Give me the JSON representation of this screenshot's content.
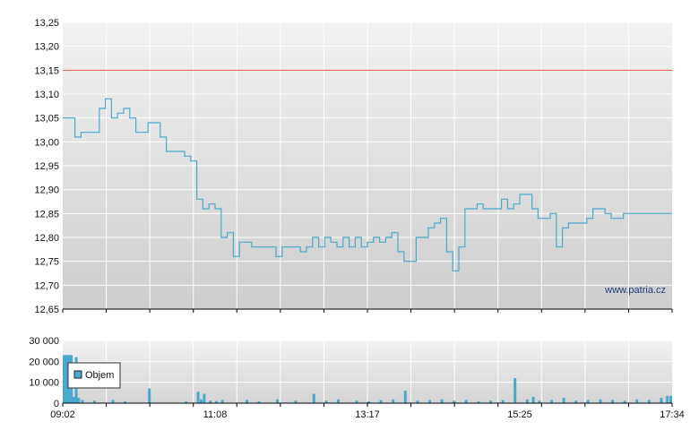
{
  "chart_data": [
    {
      "type": "line",
      "title": "",
      "xlabel": "",
      "ylabel": "",
      "ylim": [
        12.65,
        13.25
      ],
      "yticks": [
        "13,25",
        "13,20",
        "13,15",
        "13,10",
        "13,05",
        "13,00",
        "12,95",
        "12,90",
        "12,85",
        "12,80",
        "12,75",
        "12,70",
        "12,65"
      ],
      "reference_line": {
        "value": 13.15,
        "color": "#e05a4a"
      },
      "line_color": "#4aa8cc",
      "grid": true,
      "watermark": "www.patria.cz",
      "series": [
        {
          "x": [
            0,
            0.02,
            0.03,
            0.06,
            0.07,
            0.08,
            0.09,
            0.1,
            0.11,
            0.12,
            0.14,
            0.16,
            0.17,
            0.19,
            0.2,
            0.21,
            0.22,
            0.23,
            0.24,
            0.25,
            0.26,
            0.27,
            0.28,
            0.29,
            0.3,
            0.31,
            0.33,
            0.35,
            0.36,
            0.37,
            0.39,
            0.4,
            0.41,
            0.42,
            0.43,
            0.44,
            0.45,
            0.46,
            0.47,
            0.48,
            0.49,
            0.5,
            0.51,
            0.52,
            0.53,
            0.54,
            0.55,
            0.56,
            0.57,
            0.58,
            0.59,
            0.6,
            0.61,
            0.62,
            0.63,
            0.64,
            0.65,
            0.66,
            0.67,
            0.68,
            0.69,
            0.7,
            0.71,
            0.72,
            0.73,
            0.74,
            0.75,
            0.76,
            0.77,
            0.78,
            0.79,
            0.8,
            0.81,
            0.82,
            0.83,
            0.84,
            0.85,
            0.86,
            0.87,
            0.88,
            0.89,
            0.9,
            0.91,
            0.92,
            0.93,
            0.94,
            0.95,
            0.96,
            0.97,
            0.98,
            0.99,
            1.0
          ],
          "y": [
            13.05,
            13.01,
            13.02,
            13.07,
            13.09,
            13.05,
            13.06,
            13.07,
            13.05,
            13.02,
            13.04,
            13.01,
            12.98,
            12.98,
            12.97,
            12.96,
            12.88,
            12.86,
            12.87,
            12.86,
            12.8,
            12.81,
            12.76,
            12.79,
            12.79,
            12.78,
            12.78,
            12.76,
            12.78,
            12.78,
            12.77,
            12.78,
            12.8,
            12.78,
            12.8,
            12.79,
            12.78,
            12.8,
            12.78,
            12.8,
            12.78,
            12.79,
            12.8,
            12.79,
            12.8,
            12.81,
            12.77,
            12.75,
            12.75,
            12.8,
            12.8,
            12.82,
            12.83,
            12.84,
            12.77,
            12.73,
            12.78,
            12.86,
            12.86,
            12.87,
            12.86,
            12.86,
            12.86,
            12.88,
            12.86,
            12.87,
            12.89,
            12.89,
            12.86,
            12.84,
            12.84,
            12.85,
            12.78,
            12.82,
            12.83,
            12.83,
            12.83,
            12.84,
            12.86,
            12.86,
            12.85,
            12.84,
            12.84,
            12.85,
            12.85,
            12.85,
            12.85,
            12.85,
            12.85,
            12.85,
            12.85,
            12.85
          ]
        }
      ]
    },
    {
      "type": "bar",
      "title": "",
      "xlabel": "",
      "ylabel": "",
      "ylim": [
        0,
        30000
      ],
      "yticks": [
        "30 000",
        "20 000",
        "10 000",
        "0"
      ],
      "xticks": [
        "09:02",
        "11:08",
        "13:17",
        "15:25",
        "17:34"
      ],
      "bar_color": "#4aa8cc",
      "grid": true,
      "legend": {
        "label": "Objem",
        "position": "top-left"
      },
      "series": [
        {
          "name": "Objem",
          "x": [
            0.0,
            0.004,
            0.008,
            0.012,
            0.016,
            0.02,
            0.024,
            0.03,
            0.05,
            0.08,
            0.1,
            0.14,
            0.2,
            0.22,
            0.225,
            0.23,
            0.24,
            0.25,
            0.26,
            0.3,
            0.32,
            0.35,
            0.38,
            0.41,
            0.43,
            0.45,
            0.48,
            0.5,
            0.52,
            0.54,
            0.56,
            0.58,
            0.6,
            0.62,
            0.64,
            0.66,
            0.68,
            0.7,
            0.72,
            0.74,
            0.76,
            0.77,
            0.78,
            0.8,
            0.82,
            0.84,
            0.86,
            0.88,
            0.9,
            0.92,
            0.94,
            0.96,
            0.98,
            0.99,
            1.0
          ],
          "y": [
            23000,
            23000,
            23000,
            23000,
            3000,
            22000,
            2500,
            1500,
            1200,
            1500,
            900,
            7000,
            900,
            5500,
            1800,
            4500,
            1200,
            1000,
            1500,
            1500,
            900,
            1800,
            1200,
            4500,
            1200,
            1800,
            1200,
            900,
            1500,
            1800,
            6000,
            1200,
            1500,
            1800,
            1200,
            1500,
            900,
            1200,
            1500,
            12000,
            1800,
            3000,
            1200,
            1500,
            2500,
            1200,
            1500,
            1800,
            1500,
            1200,
            1800,
            1500,
            2500,
            3500,
            3500
          ]
        }
      ]
    }
  ]
}
